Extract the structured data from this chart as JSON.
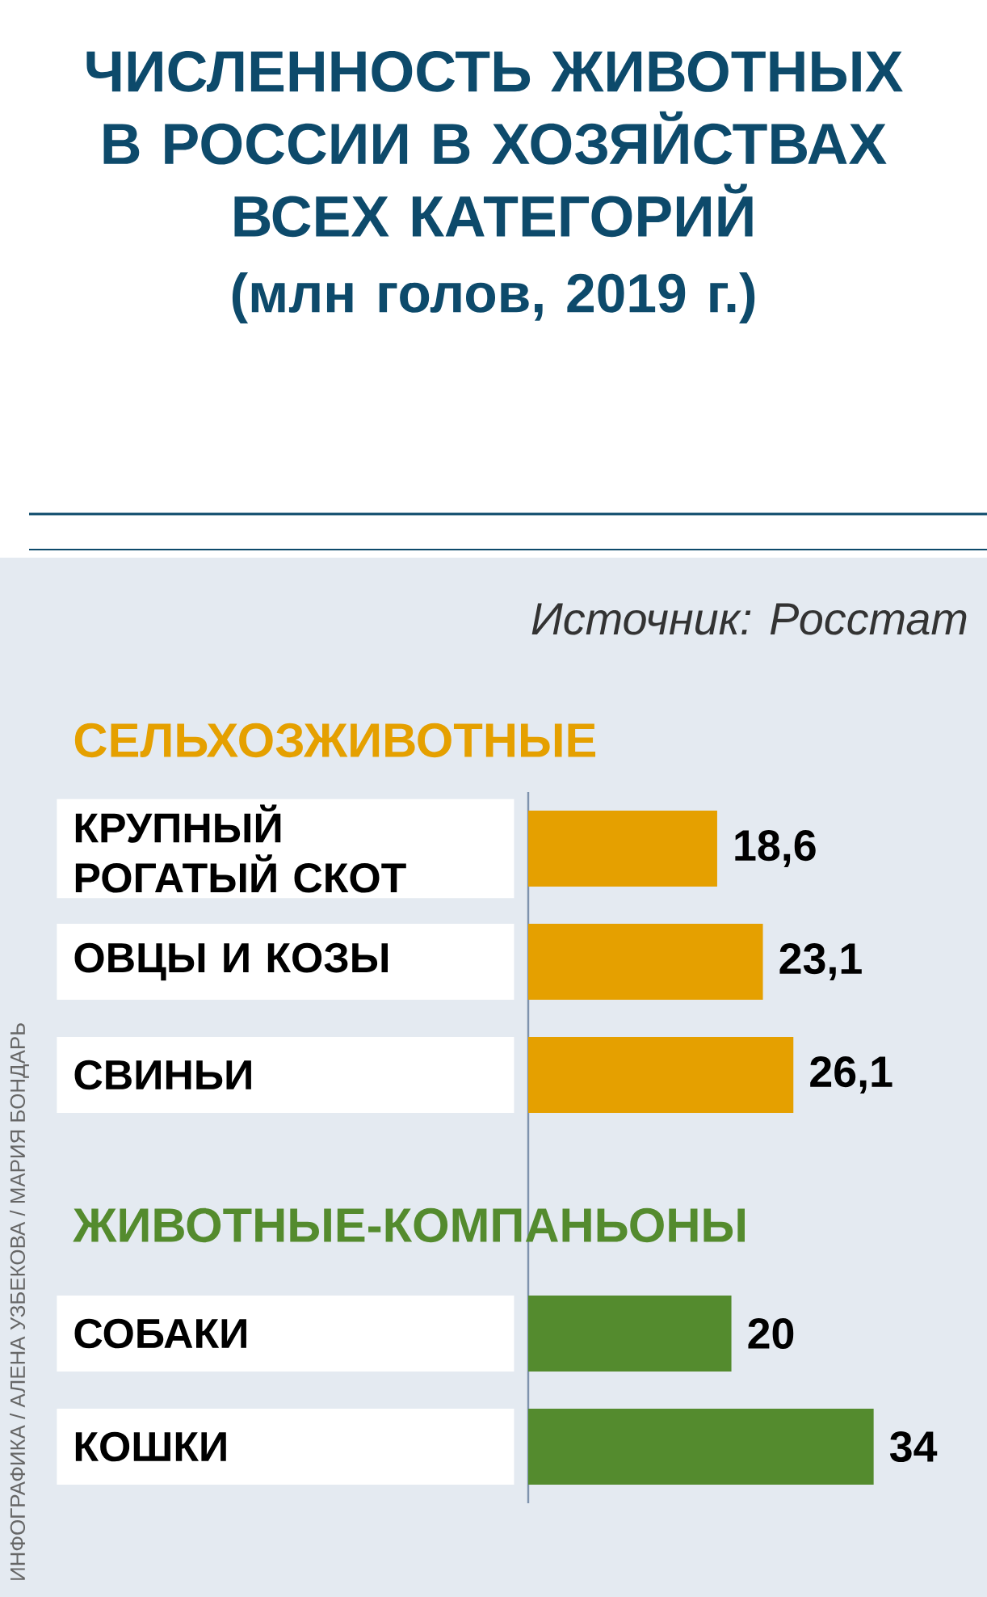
{
  "chart_data": {
    "type": "bar",
    "orientation": "horizontal",
    "title": "ЧИСЛЕННОСТЬ ЖИВОТНЫХ В РОССИИ В ХОЗЯЙСТВАХ ВСЕХ КАТЕГОРИЙ",
    "subtitle": "(млн голов, 2019 г.)",
    "categories": [
      "КРУПНЫЙ РОГАТЫЙ СКОТ",
      "ОВЦЫ И КОЗЫ",
      "СВИНЬИ",
      "СОБАКИ",
      "КОШКИ"
    ],
    "series": [
      {
        "name": "СЕЛЬХОЗЖИВОТНЫЕ",
        "color": "#e5a000",
        "values": [
          18.6,
          23.1,
          26.1,
          null,
          null
        ],
        "value_labels": [
          "18,6",
          "23,1",
          "26,1",
          null,
          null
        ]
      },
      {
        "name": "ЖИВОТНЫЕ-КОМПАНЬОНЫ",
        "color": "#548b2e",
        "values": [
          null,
          null,
          null,
          20,
          34
        ],
        "value_labels": [
          null,
          null,
          null,
          "20",
          "34"
        ]
      }
    ],
    "annotations": [
      "Источник: Росстат",
      "ИНФОГРАФИКА / АЛЕНА УЗБЕКОВА / МАРИЯ БОНДАРЬ"
    ]
  }
}
